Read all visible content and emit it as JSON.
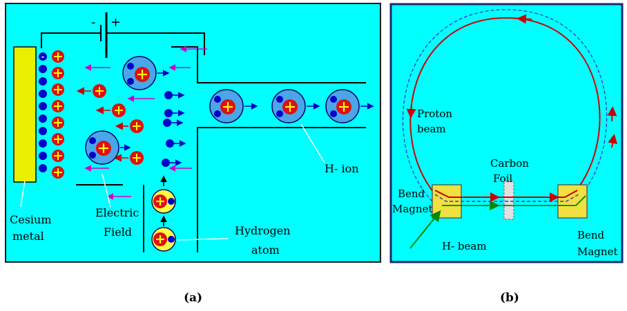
{
  "colors": {
    "background": "#00ffff",
    "frame": "#1a1a1a",
    "cesium": "#e8f000",
    "electron": "#0000cc",
    "proton": "#dd1111",
    "atom_shell": "#4aa6e8",
    "field_arrow": "#cc00cc",
    "ring": "#cc0000",
    "ring_dashed": "#3333cc",
    "beam_green": "#008800",
    "magnet": "#f0e040",
    "pointer": "#ffffff"
  },
  "panel_a": {
    "caption": "(a)",
    "battery_minus": "-",
    "battery_plus": "+",
    "label_cesium_1": "Cesium",
    "label_cesium_2": "metal",
    "label_field_1": "Electric",
    "label_field_2": "Field",
    "label_hydrogen_1": "Hydrogen",
    "label_hydrogen_2": "atom",
    "label_hion": "H- ion"
  },
  "panel_b": {
    "caption": "(b)",
    "label_proton_1": "Proton",
    "label_proton_2": "beam",
    "label_carbon_1": "Carbon",
    "label_carbon_2": "Foil",
    "label_bend_left_1": "Bend",
    "label_bend_left_2": "Magnet",
    "label_bend_right_1": "Bend",
    "label_bend_right_2": "Magnet",
    "label_hbeam": "H- beam"
  }
}
